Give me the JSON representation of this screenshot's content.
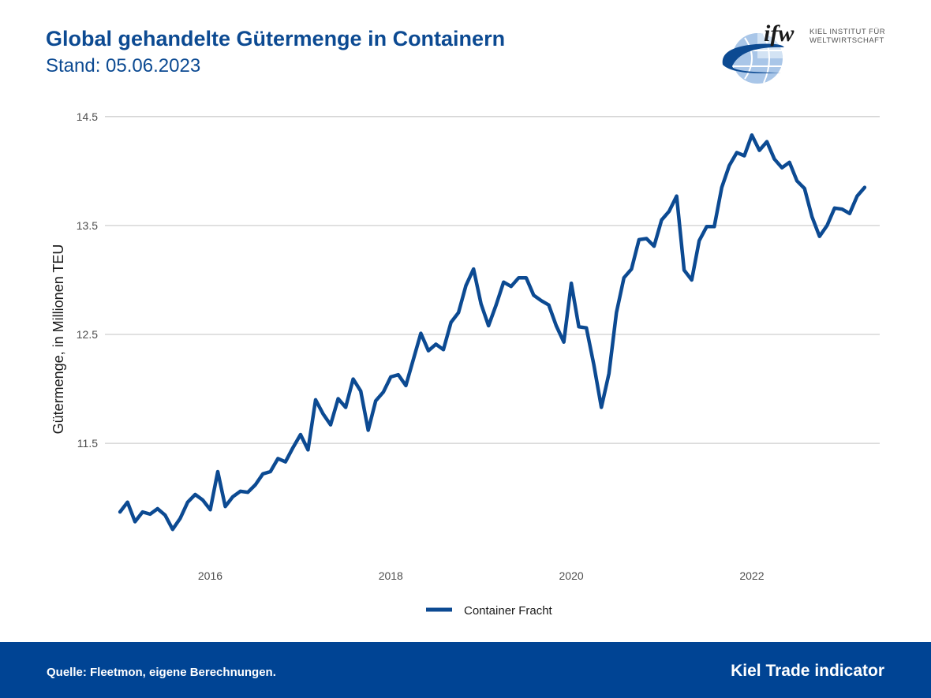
{
  "header": {
    "title": "Global gehandelte Gütermenge in Containern",
    "subtitle": "Stand: 05.06.2023"
  },
  "logo": {
    "mark": "ifw",
    "line1": "KIEL INSTITUT FÜR",
    "line2": "WELTWIRTSCHAFT",
    "icon": "globe-icon"
  },
  "footer": {
    "source": "Quelle: Fleetmon, eigene Berechnungen.",
    "brand": "Kiel Trade indicator",
    "background": "#004494"
  },
  "colors": {
    "series": "#0c4a92",
    "title": "#0c4a92",
    "grid": "#cfcfcf"
  },
  "chart_data": {
    "type": "line",
    "title": "",
    "xlabel": "",
    "ylabel": "Gütermenge, in Millionen TEU",
    "xlim": [
      "2014-11",
      "2023-06"
    ],
    "ylim": [
      10.4,
      14.6
    ],
    "y_ticks": [
      "11.5",
      "12.5",
      "13.5",
      "14.5"
    ],
    "x_ticks": [
      "2016",
      "2018",
      "2020",
      "2022"
    ],
    "grid": true,
    "legend_position": "bottom",
    "series": [
      {
        "name": "Container Fracht",
        "x": [
          "2015-01",
          "2015-02",
          "2015-03",
          "2015-04",
          "2015-05",
          "2015-06",
          "2015-07",
          "2015-08",
          "2015-09",
          "2015-10",
          "2015-11",
          "2015-12",
          "2016-01",
          "2016-02",
          "2016-03",
          "2016-04",
          "2016-05",
          "2016-06",
          "2016-07",
          "2016-08",
          "2016-09",
          "2016-10",
          "2016-11",
          "2016-12",
          "2017-01",
          "2017-02",
          "2017-03",
          "2017-04",
          "2017-05",
          "2017-06",
          "2017-07",
          "2017-08",
          "2017-09",
          "2017-10",
          "2017-11",
          "2017-12",
          "2018-01",
          "2018-02",
          "2018-03",
          "2018-04",
          "2018-05",
          "2018-06",
          "2018-07",
          "2018-08",
          "2018-09",
          "2018-10",
          "2018-11",
          "2018-12",
          "2019-01",
          "2019-02",
          "2019-03",
          "2019-04",
          "2019-05",
          "2019-06",
          "2019-07",
          "2019-08",
          "2019-09",
          "2019-10",
          "2019-11",
          "2019-12",
          "2020-01",
          "2020-02",
          "2020-03",
          "2020-04",
          "2020-05",
          "2020-06",
          "2020-07",
          "2020-08",
          "2020-09",
          "2020-10",
          "2020-11",
          "2020-12",
          "2021-01",
          "2021-02",
          "2021-03",
          "2021-04",
          "2021-05",
          "2021-06",
          "2021-07",
          "2021-08",
          "2021-09",
          "2021-10",
          "2021-11",
          "2021-12",
          "2022-01",
          "2022-02",
          "2022-03",
          "2022-04",
          "2022-05",
          "2022-06",
          "2022-07",
          "2022-08",
          "2022-09",
          "2022-10",
          "2022-11",
          "2022-12",
          "2023-01",
          "2023-02",
          "2023-03",
          "2023-04"
        ],
        "values": [
          10.87,
          10.96,
          10.78,
          10.87,
          10.85,
          10.9,
          10.84,
          10.71,
          10.81,
          10.96,
          11.03,
          10.98,
          10.89,
          11.24,
          10.92,
          11.01,
          11.06,
          11.05,
          11.12,
          11.22,
          11.24,
          11.36,
          11.33,
          11.46,
          11.58,
          11.44,
          11.9,
          11.77,
          11.67,
          11.91,
          11.83,
          12.09,
          11.98,
          11.62,
          11.89,
          11.97,
          12.11,
          12.13,
          12.03,
          12.27,
          12.51,
          12.35,
          12.41,
          12.36,
          12.61,
          12.7,
          12.95,
          13.1,
          12.78,
          12.58,
          12.77,
          12.98,
          12.94,
          13.02,
          13.02,
          12.86,
          12.81,
          12.77,
          12.58,
          12.43,
          12.97,
          12.57,
          12.56,
          12.22,
          11.83,
          12.14,
          12.7,
          13.02,
          13.1,
          13.37,
          13.38,
          13.31,
          13.55,
          13.63,
          13.77,
          13.09,
          13.0,
          13.36,
          13.49,
          13.49,
          13.85,
          14.05,
          14.17,
          14.14,
          14.33,
          14.19,
          14.27,
          14.11,
          14.03,
          14.08,
          13.91,
          13.84,
          13.58,
          13.4,
          13.5,
          13.66,
          13.65,
          13.61,
          13.77,
          13.85
        ]
      }
    ]
  }
}
